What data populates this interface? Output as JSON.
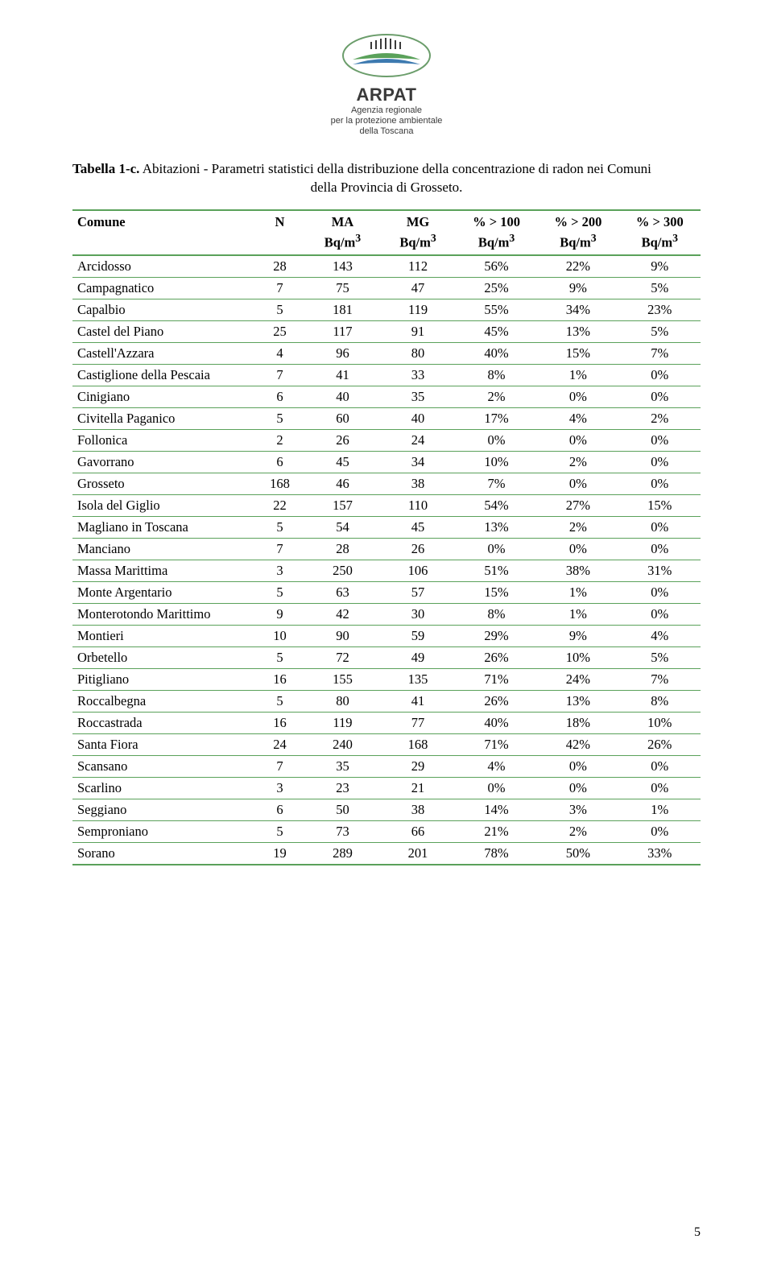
{
  "logo": {
    "name": "ARPAT",
    "sub1": "Agenzia regionale",
    "sub2": "per la protezione ambientale",
    "sub3": "della Toscana",
    "colors": {
      "wave_green": "#5aa15a",
      "wave_blue": "#3d7ab0",
      "border": "#6b9d6b",
      "text": "#3a3a3a"
    }
  },
  "caption": {
    "label": "Tabella 1-c.",
    "desc_line1": "Abitazioni - Parametri statistici della distribuzione della concentrazione di radon nei Comuni",
    "desc_line2": "della Provincia di Grosseto."
  },
  "table": {
    "border_color": "#5aa15a",
    "columns": [
      {
        "key": "comune",
        "label": "Comune",
        "sub": ""
      },
      {
        "key": "n",
        "label": "N",
        "sub": ""
      },
      {
        "key": "ma",
        "label": "MA",
        "sub": "Bq/m³"
      },
      {
        "key": "mg",
        "label": "MG",
        "sub": "Bq/m³"
      },
      {
        "key": "p100",
        "label": "% > 100",
        "sub": "Bq/m³"
      },
      {
        "key": "p200",
        "label": "% > 200",
        "sub": "Bq/m³"
      },
      {
        "key": "p300",
        "label": "% > 300",
        "sub": "Bq/m³"
      }
    ],
    "rows": [
      {
        "comune": "Arcidosso",
        "n": 28,
        "ma": 143,
        "mg": 112,
        "p100": "56%",
        "p200": "22%",
        "p300": "9%"
      },
      {
        "comune": "Campagnatico",
        "n": 7,
        "ma": 75,
        "mg": 47,
        "p100": "25%",
        "p200": "9%",
        "p300": "5%"
      },
      {
        "comune": "Capalbio",
        "n": 5,
        "ma": 181,
        "mg": 119,
        "p100": "55%",
        "p200": "34%",
        "p300": "23%"
      },
      {
        "comune": "Castel del Piano",
        "n": 25,
        "ma": 117,
        "mg": 91,
        "p100": "45%",
        "p200": "13%",
        "p300": "5%"
      },
      {
        "comune": "Castell'Azzara",
        "n": 4,
        "ma": 96,
        "mg": 80,
        "p100": "40%",
        "p200": "15%",
        "p300": "7%"
      },
      {
        "comune": "Castiglione della Pescaia",
        "n": 7,
        "ma": 41,
        "mg": 33,
        "p100": "8%",
        "p200": "1%",
        "p300": "0%"
      },
      {
        "comune": "Cinigiano",
        "n": 6,
        "ma": 40,
        "mg": 35,
        "p100": "2%",
        "p200": "0%",
        "p300": "0%"
      },
      {
        "comune": "Civitella Paganico",
        "n": 5,
        "ma": 60,
        "mg": 40,
        "p100": "17%",
        "p200": "4%",
        "p300": "2%"
      },
      {
        "comune": "Follonica",
        "n": 2,
        "ma": 26,
        "mg": 24,
        "p100": "0%",
        "p200": "0%",
        "p300": "0%"
      },
      {
        "comune": "Gavorrano",
        "n": 6,
        "ma": 45,
        "mg": 34,
        "p100": "10%",
        "p200": "2%",
        "p300": "0%"
      },
      {
        "comune": "Grosseto",
        "n": 168,
        "ma": 46,
        "mg": 38,
        "p100": "7%",
        "p200": "0%",
        "p300": "0%"
      },
      {
        "comune": "Isola del Giglio",
        "n": 22,
        "ma": 157,
        "mg": 110,
        "p100": "54%",
        "p200": "27%",
        "p300": "15%"
      },
      {
        "comune": "Magliano in Toscana",
        "n": 5,
        "ma": 54,
        "mg": 45,
        "p100": "13%",
        "p200": "2%",
        "p300": "0%"
      },
      {
        "comune": "Manciano",
        "n": 7,
        "ma": 28,
        "mg": 26,
        "p100": "0%",
        "p200": "0%",
        "p300": "0%"
      },
      {
        "comune": "Massa Marittima",
        "n": 3,
        "ma": 250,
        "mg": 106,
        "p100": "51%",
        "p200": "38%",
        "p300": "31%"
      },
      {
        "comune": "Monte Argentario",
        "n": 5,
        "ma": 63,
        "mg": 57,
        "p100": "15%",
        "p200": "1%",
        "p300": "0%"
      },
      {
        "comune": "Monterotondo Marittimo",
        "n": 9,
        "ma": 42,
        "mg": 30,
        "p100": "8%",
        "p200": "1%",
        "p300": "0%"
      },
      {
        "comune": "Montieri",
        "n": 10,
        "ma": 90,
        "mg": 59,
        "p100": "29%",
        "p200": "9%",
        "p300": "4%"
      },
      {
        "comune": "Orbetello",
        "n": 5,
        "ma": 72,
        "mg": 49,
        "p100": "26%",
        "p200": "10%",
        "p300": "5%"
      },
      {
        "comune": "Pitigliano",
        "n": 16,
        "ma": 155,
        "mg": 135,
        "p100": "71%",
        "p200": "24%",
        "p300": "7%"
      },
      {
        "comune": "Roccalbegna",
        "n": 5,
        "ma": 80,
        "mg": 41,
        "p100": "26%",
        "p200": "13%",
        "p300": "8%"
      },
      {
        "comune": "Roccastrada",
        "n": 16,
        "ma": 119,
        "mg": 77,
        "p100": "40%",
        "p200": "18%",
        "p300": "10%"
      },
      {
        "comune": "Santa Fiora",
        "n": 24,
        "ma": 240,
        "mg": 168,
        "p100": "71%",
        "p200": "42%",
        "p300": "26%"
      },
      {
        "comune": "Scansano",
        "n": 7,
        "ma": 35,
        "mg": 29,
        "p100": "4%",
        "p200": "0%",
        "p300": "0%"
      },
      {
        "comune": "Scarlino",
        "n": 3,
        "ma": 23,
        "mg": 21,
        "p100": "0%",
        "p200": "0%",
        "p300": "0%"
      },
      {
        "comune": "Seggiano",
        "n": 6,
        "ma": 50,
        "mg": 38,
        "p100": "14%",
        "p200": "3%",
        "p300": "1%"
      },
      {
        "comune": "Semproniano",
        "n": 5,
        "ma": 73,
        "mg": 66,
        "p100": "21%",
        "p200": "2%",
        "p300": "0%"
      },
      {
        "comune": "Sorano",
        "n": 19,
        "ma": 289,
        "mg": 201,
        "p100": "78%",
        "p200": "50%",
        "p300": "33%"
      }
    ]
  },
  "page_number": "5"
}
